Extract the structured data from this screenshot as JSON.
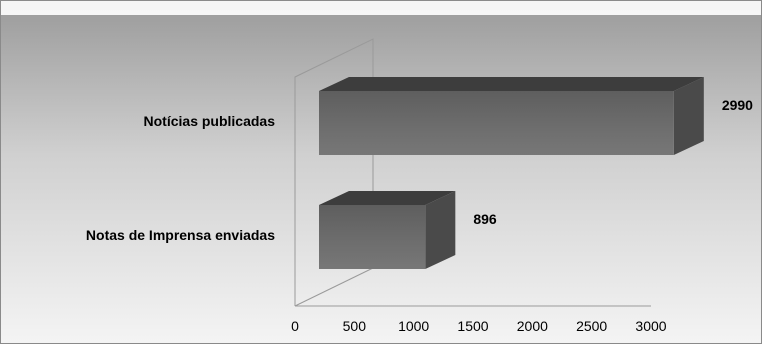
{
  "chart_data": {
    "type": "bar",
    "orientation": "horizontal",
    "three_d": true,
    "categories": [
      "Notas de Imprensa enviadas",
      "Notícias publicadas"
    ],
    "values": [
      896,
      2990
    ],
    "data_labels": [
      "896",
      "2990"
    ],
    "xlim": [
      0,
      3000
    ],
    "x_ticks": [
      "0",
      "500",
      "1000",
      "1500",
      "2000",
      "2500",
      "3000"
    ],
    "title": "",
    "xlabel": "",
    "ylabel": "",
    "grid": false,
    "colors": {
      "bar_front_top": "#5e5e5e",
      "bar_front_bottom": "#6e6e6e",
      "bar_front_low": "#777777",
      "bar_top_face": "#3d3d3d",
      "bar_side_face": "#4a4a4a",
      "wall_line": "#9a9a9a"
    }
  }
}
